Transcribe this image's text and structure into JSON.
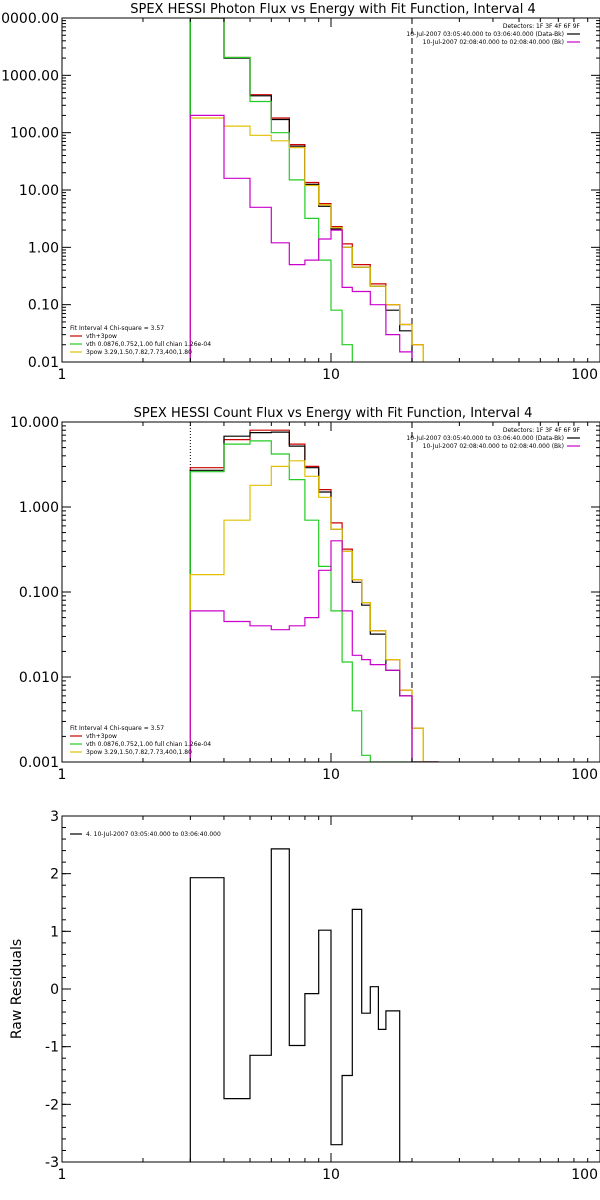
{
  "chart_data": [
    {
      "type": "line",
      "step": true,
      "title": "SPEX HESSI Photon Flux vs Energy with Fit Function, Interval 4",
      "xlabel": "",
      "ylabel": "",
      "xscale": "log",
      "yscale": "log",
      "xlim": [
        1,
        100
      ],
      "ylim": [
        0.01,
        10000
      ],
      "xticks": [
        {
          "v": 1,
          "label": "1"
        },
        {
          "v": 10,
          "label": "10"
        },
        {
          "v": 100,
          "label": "100"
        }
      ],
      "yticks": [
        {
          "v": 0.01,
          "label": "0.01"
        },
        {
          "v": 0.1,
          "label": "0.10"
        },
        {
          "v": 1,
          "label": "1.00"
        },
        {
          "v": 10,
          "label": "10.00"
        },
        {
          "v": 100,
          "label": "100.00"
        },
        {
          "v": 1000,
          "label": "1000.00"
        },
        {
          "v": 10000,
          "label": "10000.00"
        }
      ],
      "x_edges": [
        3,
        4,
        5,
        6,
        7,
        8,
        9,
        10,
        11,
        12,
        14,
        16,
        18,
        20,
        22,
        25
      ],
      "series": [
        {
          "name": "vth+3pow",
          "color": "#cc0000",
          "values": [
            10000,
            2050,
            460,
            180,
            62,
            13.5,
            5.8,
            2.3,
            1.15,
            0.5,
            0.23,
            0.1,
            0.045,
            0.02,
            0.008
          ]
        },
        {
          "name": "data",
          "color": "#000000",
          "values": [
            10000,
            2000,
            440,
            170,
            58,
            12.5,
            5.2,
            2.1,
            1.0,
            0.45,
            0.21,
            0.08,
            0.035,
            0.008,
            0.008
          ]
        },
        {
          "name": "vth 0.0876,0.752,1.00 full chian 1.26e-04",
          "color": "#22cc22",
          "values": [
            10000,
            2050,
            350,
            100,
            15,
            3.2,
            0.6,
            0.08,
            0.02,
            0.008,
            0.008,
            0.008,
            0.008,
            0.008,
            0.008
          ]
        },
        {
          "name": "3pow 3.29,1.50,7.82,7.73,400,1.80",
          "color": "#e0c000",
          "values": [
            180,
            130,
            90,
            72,
            55,
            12,
            5.5,
            2.2,
            1.0,
            0.45,
            0.21,
            0.1,
            0.045,
            0.02,
            0.008
          ]
        },
        {
          "name": "bk",
          "color": "#cc00cc",
          "values": [
            200,
            16,
            5,
            1.2,
            0.5,
            0.6,
            1.4,
            2.0,
            0.2,
            0.17,
            0.1,
            0.03,
            0.015,
            0.008,
            0.008
          ]
        }
      ],
      "vlines": [
        {
          "x": 3,
          "style": "dotted",
          "color": "#000000"
        },
        {
          "x": 20,
          "style": "dashed",
          "color": "#000000"
        }
      ],
      "legend_right": {
        "header": "Detectors: 1F 3F 4F 6F 9F",
        "items": [
          {
            "label": "10-Jul-2007 03:05:40.000 to 03:06:40.000 (Data-Bk)",
            "color": "#000000"
          },
          {
            "label": "10-Jul-2007 02:08:40.000 to 02:08:40.000 (Bk)",
            "color": "#cc00cc"
          }
        ]
      },
      "legend_left": {
        "header": "Fit Interval 4   Chi-square = 3.57",
        "items": [
          {
            "label": "vth+3pow",
            "color": "#cc0000"
          },
          {
            "label": "vth 0.0876,0.752,1.00  full chian 1.26e-04",
            "color": "#22cc22"
          },
          {
            "label": "3pow 3.29,1.50,7.82,7.73,400,1.80",
            "color": "#e0c000"
          }
        ]
      }
    },
    {
      "type": "line",
      "step": true,
      "title": "SPEX HESSI Count Flux vs Energy with Fit Function, Interval 4",
      "xlabel": "",
      "ylabel": "",
      "xscale": "log",
      "yscale": "log",
      "xlim": [
        1,
        100
      ],
      "ylim": [
        0.001,
        10
      ],
      "xticks": [
        {
          "v": 1,
          "label": "1"
        },
        {
          "v": 10,
          "label": "10"
        },
        {
          "v": 100,
          "label": "100"
        }
      ],
      "yticks": [
        {
          "v": 0.001,
          "label": "0.001"
        },
        {
          "v": 0.01,
          "label": "0.010"
        },
        {
          "v": 0.1,
          "label": "0.100"
        },
        {
          "v": 1,
          "label": "1.000"
        },
        {
          "v": 10,
          "label": "10.000"
        }
      ],
      "x_edges": [
        3,
        4,
        5,
        6,
        7,
        8,
        9,
        10,
        11,
        12,
        13,
        14,
        16,
        18,
        20,
        22,
        25
      ],
      "series": [
        {
          "name": "vth+3pow",
          "color": "#cc0000",
          "values": [
            2.9,
            6.2,
            8.0,
            8.0,
            5.5,
            3.0,
            1.6,
            0.65,
            0.32,
            0.14,
            0.075,
            0.035,
            0.016,
            0.007,
            0.0025,
            0.001
          ]
        },
        {
          "name": "data",
          "color": "#000000",
          "values": [
            2.7,
            6.8,
            7.5,
            7.6,
            5.2,
            2.9,
            1.5,
            0.55,
            0.3,
            0.13,
            0.07,
            0.032,
            0.012,
            0.006,
            0.001,
            0.001
          ]
        },
        {
          "name": "vth",
          "color": "#22cc22",
          "values": [
            2.6,
            5.5,
            6.0,
            4.2,
            2.1,
            0.7,
            0.2,
            0.06,
            0.015,
            0.004,
            0.0012,
            0.001,
            0.001,
            0.001,
            0.001,
            0.001
          ]
        },
        {
          "name": "3pow",
          "color": "#e0c000",
          "values": [
            0.16,
            0.7,
            1.8,
            3.0,
            3.5,
            2.3,
            1.3,
            0.55,
            0.3,
            0.14,
            0.075,
            0.035,
            0.016,
            0.007,
            0.0025,
            0.001
          ]
        },
        {
          "name": "bk",
          "color": "#cc00cc",
          "values": [
            0.06,
            0.045,
            0.04,
            0.036,
            0.04,
            0.05,
            0.18,
            0.4,
            0.06,
            0.018,
            0.016,
            0.014,
            0.012,
            0.006,
            0.001,
            0.001
          ]
        }
      ],
      "vlines": [
        {
          "x": 3,
          "style": "dotted",
          "color": "#000000"
        },
        {
          "x": 20,
          "style": "dashed",
          "color": "#000000"
        }
      ],
      "legend_right": {
        "header": "Detectors: 1F 3F 4F 6F 9F",
        "items": [
          {
            "label": "10-Jul-2007 03:05:40.000 to 03:06:40.000 (Data-Bk)",
            "color": "#000000"
          },
          {
            "label": "10-Jul-2007 02:08:40.000 to 02:08:40.000 (Bk)",
            "color": "#cc00cc"
          }
        ]
      },
      "legend_left": {
        "header": "Fit Interval 4   Chi-square = 3.57",
        "items": [
          {
            "label": "vth+3pow",
            "color": "#cc0000"
          },
          {
            "label": "vth 0.0876,0.752,1.00  full chian 1.26e-04",
            "color": "#22cc22"
          },
          {
            "label": "3pow 3.29,1.50,7.82,7.73,400,1.80",
            "color": "#e0c000"
          }
        ]
      }
    },
    {
      "type": "line",
      "step": true,
      "title": "",
      "xlabel": "",
      "ylabel": "Raw Residuals",
      "xscale": "log",
      "yscale": "linear",
      "xlim": [
        1,
        100
      ],
      "ylim": [
        -3,
        3
      ],
      "xticks": [
        {
          "v": 1,
          "label": "1"
        },
        {
          "v": 10,
          "label": "10"
        },
        {
          "v": 100,
          "label": "100"
        }
      ],
      "yticks": [
        {
          "v": -3,
          "label": "-3"
        },
        {
          "v": -2,
          "label": "-2"
        },
        {
          "v": -1,
          "label": "-1"
        },
        {
          "v": 0,
          "label": "0"
        },
        {
          "v": 1,
          "label": "1"
        },
        {
          "v": 2,
          "label": "2"
        },
        {
          "v": 3,
          "label": "3"
        }
      ],
      "x_edges": [
        3,
        4,
        5,
        6,
        7,
        8,
        9,
        10,
        11,
        12,
        13,
        14,
        15,
        16,
        18,
        20
      ],
      "baseline": -3,
      "series": [
        {
          "name": "4. 10-Jul-2007 03:05:40.000 to 03:06:40.000",
          "color": "#000000",
          "values": [
            1.93,
            -1.9,
            -1.15,
            2.43,
            -0.98,
            -0.08,
            1.02,
            -2.7,
            -1.5,
            1.38,
            -0.42,
            0.04,
            -0.7,
            -0.38,
            -3.0
          ]
        }
      ],
      "vlines": [],
      "legend_left": {
        "header": "",
        "items": [
          {
            "label": "4. 10-Jul-2007 03:05:40.000 to 03:06:40.000",
            "color": "#000000"
          }
        ]
      }
    }
  ]
}
